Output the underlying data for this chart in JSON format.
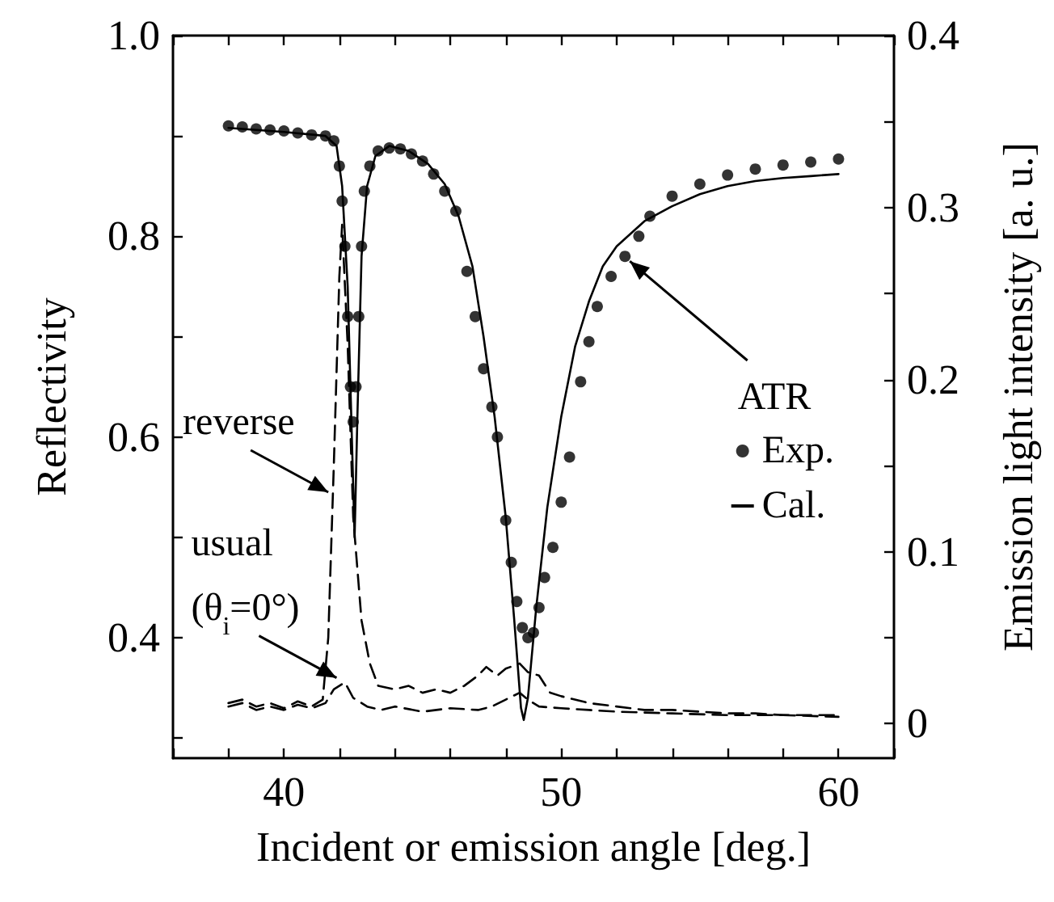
{
  "chart_data": {
    "type": "line",
    "xlabel": "Incident or emission angle [deg.]",
    "ylabel": "Reflectivity",
    "y2label": "Emission light intensity [a. u.]",
    "legend_title": "ATR",
    "legend": "right",
    "grid": false,
    "xlim": [
      36,
      62
    ],
    "xticks": [
      40,
      50,
      60
    ],
    "ylim": [
      0.28,
      1.0
    ],
    "yticks": [
      {
        "value": 0.4,
        "label": "0.4"
      },
      {
        "value": 0.6,
        "label": "0.6"
      },
      {
        "value": 0.8,
        "label": "0.8"
      },
      {
        "value": 1.0,
        "label": "1.0"
      }
    ],
    "y2lim": [
      -0.02,
      0.4
    ],
    "y2ticks": [
      0,
      0.1,
      0.2,
      0.3,
      0.4
    ],
    "annotations": [
      {
        "text": "reverse",
        "x": 41.6,
        "y": 0.545
      },
      {
        "text": "usual\n(θ$_{i}$=0°)",
        "x": 41.9,
        "y": 0.36
      }
    ],
    "series": [
      {
        "name": "Exp.",
        "type": "scatter",
        "marker": "circle",
        "color": "#000000",
        "x": [
          38,
          38.5,
          39,
          39.5,
          40,
          40.5,
          41,
          41.5,
          41.8,
          42.0,
          42.1,
          42.2,
          42.3,
          42.4,
          42.5,
          42.6,
          42.7,
          42.8,
          42.9,
          43.1,
          43.4,
          43.8,
          44.2,
          44.6,
          45.0,
          45.4,
          45.8,
          46.2,
          46.6,
          46.9,
          47.2,
          47.5,
          47.7,
          48.0,
          48.2,
          48.4,
          48.6,
          48.8,
          49.0,
          49.2,
          49.4,
          49.7,
          50.0,
          50.3,
          50.7,
          51.0,
          51.3,
          51.8,
          52.3,
          52.8,
          53.2,
          54,
          55,
          56,
          57,
          58,
          59,
          60
        ],
        "values": [
          0.91,
          0.909,
          0.907,
          0.906,
          0.905,
          0.903,
          0.901,
          0.9,
          0.895,
          0.87,
          0.835,
          0.79,
          0.72,
          0.65,
          0.615,
          0.65,
          0.72,
          0.79,
          0.845,
          0.87,
          0.885,
          0.888,
          0.887,
          0.882,
          0.875,
          0.862,
          0.845,
          0.825,
          0.765,
          0.72,
          0.668,
          0.63,
          0.6,
          0.517,
          0.475,
          0.436,
          0.41,
          0.4,
          0.405,
          0.43,
          0.46,
          0.49,
          0.535,
          0.58,
          0.655,
          0.695,
          0.73,
          0.76,
          0.78,
          0.8,
          0.82,
          0.84,
          0.852,
          0.861,
          0.867,
          0.871,
          0.874,
          0.877
        ]
      },
      {
        "name": "Cal.",
        "marker": "none",
        "line_style": "solid",
        "color": "#000000",
        "x": [
          38,
          40,
          41.5,
          41.9,
          42.1,
          42.3,
          42.45,
          42.55,
          42.65,
          42.8,
          43.0,
          43.3,
          43.8,
          44.5,
          45.2,
          45.8,
          46.3,
          46.8,
          47.2,
          47.6,
          48.0,
          48.3,
          48.55,
          48.65,
          48.8,
          49.1,
          49.5,
          50.0,
          50.5,
          51,
          51.5,
          52,
          53,
          54,
          55,
          56,
          57,
          58,
          59,
          60
        ],
        "values": [
          0.908,
          0.904,
          0.9,
          0.89,
          0.85,
          0.75,
          0.6,
          0.5,
          0.62,
          0.78,
          0.85,
          0.88,
          0.89,
          0.885,
          0.872,
          0.852,
          0.82,
          0.77,
          0.7,
          0.62,
          0.52,
          0.42,
          0.33,
          0.318,
          0.34,
          0.43,
          0.53,
          0.62,
          0.69,
          0.735,
          0.77,
          0.79,
          0.815,
          0.83,
          0.842,
          0.85,
          0.855,
          0.858,
          0.86,
          0.862
        ]
      },
      {
        "axis": "y2",
        "marker": "none",
        "line_style": "dashed",
        "color": "#000000",
        "x": [
          38,
          38.5,
          39,
          39.5,
          40,
          40.5,
          41,
          41.4,
          41.6,
          41.8,
          42.0,
          42.1,
          42.3,
          42.5,
          42.8,
          43.1,
          43.4,
          44,
          44.5,
          45,
          45.5,
          46,
          46.5,
          47,
          47.3,
          47.7,
          48,
          48.5,
          48.8,
          49.2,
          49.6,
          50,
          51,
          52,
          53,
          54,
          55,
          56,
          57,
          58,
          59,
          60
        ],
        "values": [
          0.012,
          0.014,
          0.01,
          0.012,
          0.009,
          0.013,
          0.01,
          0.014,
          0.05,
          0.15,
          0.26,
          0.29,
          0.22,
          0.12,
          0.06,
          0.035,
          0.022,
          0.02,
          0.022,
          0.018,
          0.02,
          0.018,
          0.022,
          0.028,
          0.033,
          0.028,
          0.032,
          0.035,
          0.03,
          0.028,
          0.018,
          0.016,
          0.012,
          0.01,
          0.008,
          0.008,
          0.007,
          0.006,
          0.006,
          0.005,
          0.005,
          0.005
        ]
      },
      {
        "axis": "y2",
        "marker": "none",
        "line_style": "dashed",
        "color": "#000000",
        "x": [
          38,
          38.5,
          39,
          39.5,
          40,
          40.5,
          41,
          41.5,
          41.8,
          42.2,
          42.5,
          43,
          43.5,
          44,
          45,
          46,
          47,
          47.5,
          48,
          48.5,
          48.8,
          49.2,
          50,
          51,
          52,
          54,
          56,
          58,
          60
        ],
        "values": [
          0.01,
          0.012,
          0.008,
          0.01,
          0.008,
          0.011,
          0.009,
          0.012,
          0.02,
          0.024,
          0.015,
          0.01,
          0.008,
          0.01,
          0.007,
          0.009,
          0.008,
          0.01,
          0.014,
          0.018,
          0.014,
          0.01,
          0.009,
          0.008,
          0.007,
          0.006,
          0.005,
          0.005,
          0.004
        ]
      }
    ]
  }
}
